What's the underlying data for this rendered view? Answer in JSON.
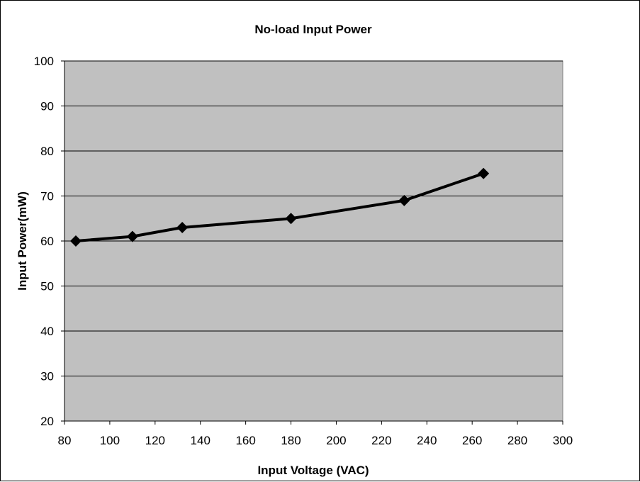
{
  "chart_data": {
    "type": "line",
    "title": "No-load Input Power",
    "xlabel": "Input Voltage (VAC)",
    "ylabel": "Input Power(mW)",
    "xlim": [
      80,
      300
    ],
    "ylim": [
      20,
      100
    ],
    "x_ticks": [
      80,
      100,
      120,
      140,
      160,
      180,
      200,
      220,
      240,
      260,
      280,
      300
    ],
    "y_ticks": [
      20,
      30,
      40,
      50,
      60,
      70,
      80,
      90,
      100
    ],
    "grid": "horizontal",
    "legend": "none",
    "series": [
      {
        "x": [
          85,
          110,
          132,
          180,
          230,
          265
        ],
        "y": [
          60,
          61,
          63,
          65,
          69,
          75
        ],
        "marker": "diamond"
      }
    ]
  },
  "colors": {
    "plot_background": "#c0c0c0",
    "gridline": "#000000",
    "series_line": "#000000",
    "marker": "#000000"
  }
}
